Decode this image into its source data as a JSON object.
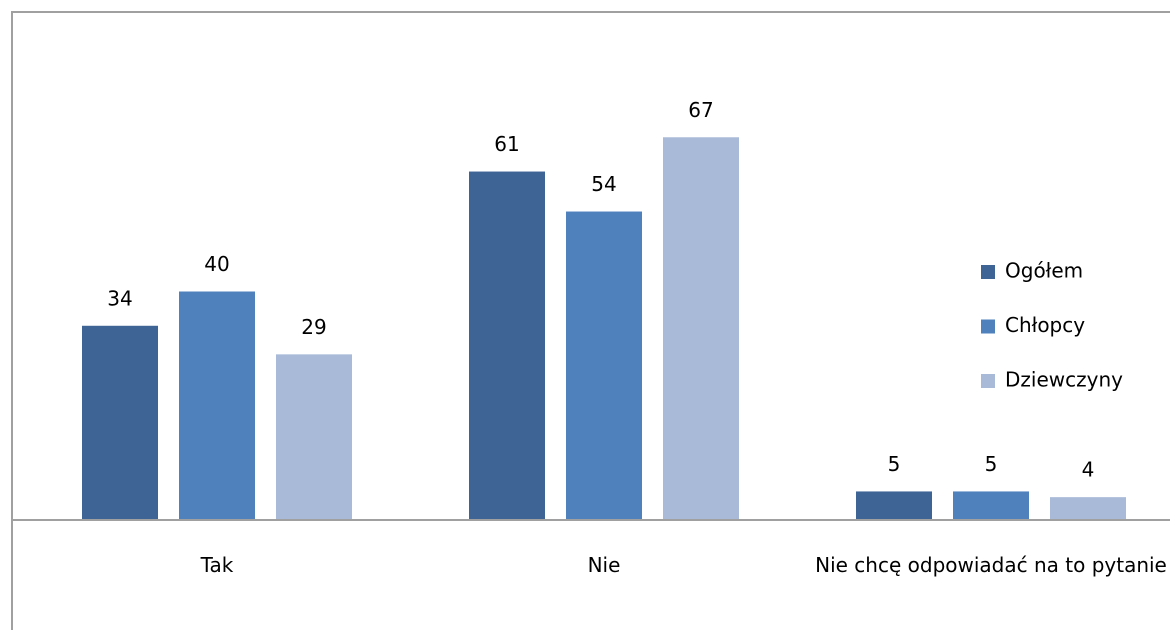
{
  "chart_data": {
    "type": "bar",
    "categories": [
      "Tak",
      "Nie",
      "Nie chcę odpowiadać na to pytanie"
    ],
    "series": [
      {
        "name": "Ogółem",
        "color": "#3e6496",
        "values": [
          34,
          61,
          5
        ]
      },
      {
        "name": "Chłopcy",
        "color": "#4f81bd",
        "values": [
          40,
          54,
          5
        ]
      },
      {
        "name": "Dziewczyny",
        "color": "#a9bad8",
        "values": [
          29,
          67,
          4
        ]
      }
    ],
    "ylim": [
      0,
      80
    ],
    "legend": "right"
  }
}
